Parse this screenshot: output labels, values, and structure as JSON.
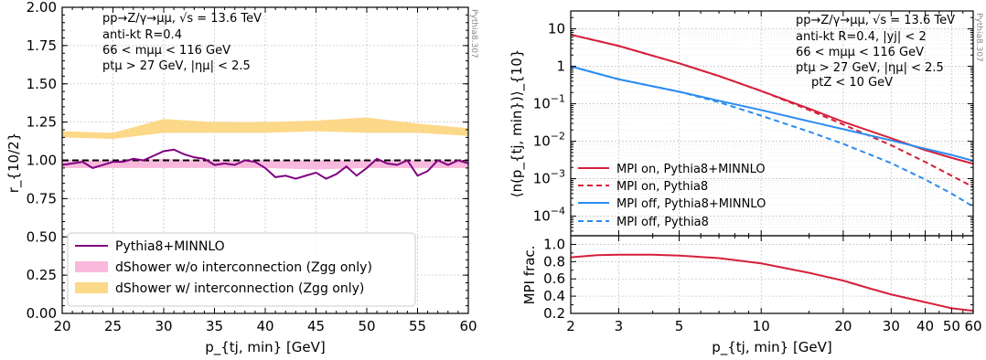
{
  "chart_data": [
    {
      "type": "line",
      "panel": "left",
      "xlabel": "p_{tj, min} [GeV]",
      "ylabel": "r_{10/2}",
      "xlim": [
        20,
        60
      ],
      "ylim": [
        0,
        2
      ],
      "x_ticks": [
        "20",
        "25",
        "30",
        "35",
        "40",
        "45",
        "50",
        "55",
        "60"
      ],
      "y_ticks": [
        "0.00",
        "0.25",
        "0.50",
        "0.75",
        "1.00",
        "1.25",
        "1.50",
        "1.75",
        "2.00"
      ],
      "grid": true,
      "legend_position": "bottom-left",
      "reference_line": 1.0,
      "annotations": [
        "pp→Z/γ→μμ, √s = 13.6 TeV",
        "anti-kt R=0.4",
        "66 < mμμ < 116 GeV",
        "ptμ > 27 GeV, |ημ| < 2.5"
      ],
      "watermark": "Pythia8.307",
      "series": [
        {
          "name": "Pythia8+MINNLO",
          "style": "line",
          "color": "#800080",
          "x": [
            20,
            21,
            22,
            23,
            24,
            25,
            26,
            27,
            28,
            29,
            30,
            31,
            32,
            33,
            34,
            35,
            36,
            37,
            38,
            39,
            40,
            41,
            42,
            43,
            44,
            45,
            46,
            47,
            48,
            49,
            50,
            51,
            52,
            53,
            54,
            55,
            56,
            57,
            58,
            59,
            60
          ],
          "y": [
            0.97,
            0.98,
            0.99,
            0.95,
            0.97,
            0.99,
            0.99,
            1.01,
            1.0,
            1.03,
            1.06,
            1.07,
            1.04,
            1.02,
            1.01,
            0.97,
            0.98,
            0.97,
            1.0,
            0.99,
            0.95,
            0.89,
            0.9,
            0.88,
            0.9,
            0.92,
            0.88,
            0.91,
            0.96,
            0.9,
            0.95,
            1.01,
            0.98,
            0.97,
            1.0,
            0.9,
            0.93,
            1.0,
            0.97,
            1.0,
            0.98
          ]
        },
        {
          "name": "dShower w/o interconnection (Zgg only)",
          "style": "band",
          "color": "#f9b9dd",
          "x": [
            20,
            25,
            30,
            35,
            40,
            45,
            50,
            55,
            60
          ],
          "lower": [
            0.95,
            0.95,
            0.95,
            0.95,
            0.95,
            0.94,
            0.95,
            0.95,
            0.95
          ],
          "upper": [
            1.0,
            1.0,
            1.01,
            1.0,
            1.0,
            1.0,
            1.0,
            1.0,
            1.0
          ]
        },
        {
          "name": "dShower w/ interconnection (Zgg only)",
          "style": "band",
          "color": "#fcd889",
          "x": [
            20,
            25,
            30,
            35,
            40,
            45,
            50,
            55,
            60
          ],
          "lower": [
            1.15,
            1.14,
            1.18,
            1.18,
            1.18,
            1.19,
            1.18,
            1.18,
            1.16
          ],
          "upper": [
            1.19,
            1.18,
            1.27,
            1.25,
            1.25,
            1.26,
            1.28,
            1.24,
            1.21
          ]
        }
      ]
    },
    {
      "type": "line",
      "panel": "right-top",
      "ylabel": "⟨n(p_{tj, min})⟩_{10}",
      "xscale": "log",
      "yscale": "log",
      "xlim": [
        2,
        60
      ],
      "ylim": [
        3e-05,
        30
      ],
      "y_ticks": [
        "10^{-4}",
        "10^{-3}",
        "10^{-2}",
        "10^{-1}",
        "1",
        "10"
      ],
      "grid": true,
      "legend_position": "bottom-left",
      "annotations": [
        "pp→Z/γ→μμ, √s = 13.6 TeV",
        "anti-kt R=0.4, |yj| < 2",
        "66 < mμμ < 116 GeV",
        "ptμ > 27 GeV, |ημ| < 2.5",
        "ptZ < 10 GeV"
      ],
      "watermark": "Pythia8.307",
      "series": [
        {
          "name": "MPI on, Pythia8+MINNLO",
          "color": "#d6203a",
          "dash": "solid",
          "x": [
            2,
            3,
            5,
            7,
            10,
            15,
            20,
            30,
            40,
            50,
            60
          ],
          "y": [
            7.0,
            3.5,
            1.2,
            0.55,
            0.22,
            0.074,
            0.033,
            0.012,
            0.0058,
            0.0036,
            0.0025
          ]
        },
        {
          "name": "MPI on, Pythia8",
          "color": "#d6203a",
          "dash": "dashed",
          "x": [
            2,
            3,
            5,
            7,
            10,
            15,
            20,
            30,
            40,
            50,
            60
          ],
          "y": [
            7.0,
            3.5,
            1.2,
            0.55,
            0.22,
            0.068,
            0.028,
            0.0078,
            0.0028,
            0.0012,
            0.0006
          ]
        },
        {
          "name": "MPI off, Pythia8+MINNLO",
          "color": "#2b8cf0",
          "dash": "solid",
          "x": [
            2,
            3,
            5,
            7,
            10,
            15,
            20,
            30,
            40,
            50,
            60
          ],
          "y": [
            1.0,
            0.45,
            0.21,
            0.12,
            0.068,
            0.034,
            0.021,
            0.0105,
            0.0063,
            0.0043,
            0.003
          ]
        },
        {
          "name": "MPI off, Pythia8",
          "color": "#2b8cf0",
          "dash": "dashed",
          "x": [
            2,
            3,
            5,
            7,
            10,
            15,
            20,
            30,
            40,
            50,
            60
          ],
          "y": [
            1.0,
            0.45,
            0.21,
            0.11,
            0.048,
            0.018,
            0.0085,
            0.0026,
            0.00095,
            0.0004,
            0.00018
          ]
        }
      ]
    },
    {
      "type": "line",
      "panel": "right-bottom",
      "xlabel": "p_{tj, min} [GeV]",
      "ylabel": "MPI frac.",
      "xscale": "log",
      "xlim": [
        2,
        60
      ],
      "ylim": [
        0.2,
        1.1
      ],
      "x_ticks": [
        "2",
        "3",
        "5",
        "10",
        "20",
        "30",
        "40",
        "50",
        "60"
      ],
      "y_ticks": [
        "0.2",
        "0.4",
        "0.6",
        "0.8",
        "1.0"
      ],
      "grid": true,
      "series": [
        {
          "name": "MPI frac.",
          "color": "#d6203a",
          "dash": "solid",
          "x": [
            2,
            2.5,
            3,
            4,
            5,
            7,
            10,
            15,
            20,
            25,
            30,
            40,
            50,
            60
          ],
          "y": [
            0.85,
            0.875,
            0.88,
            0.88,
            0.87,
            0.84,
            0.78,
            0.67,
            0.58,
            0.49,
            0.42,
            0.33,
            0.26,
            0.23
          ]
        }
      ]
    }
  ]
}
